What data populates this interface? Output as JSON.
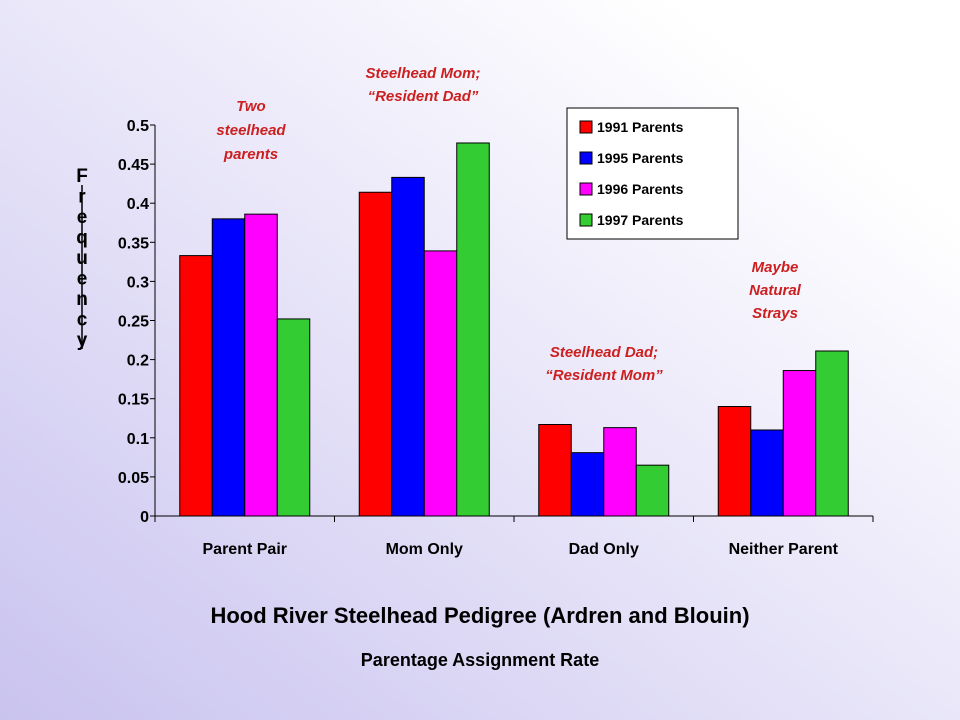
{
  "chart_data": {
    "type": "bar",
    "title": "Hood River Steelhead Pedigree (Ardren and Blouin)",
    "subtitle": "Parentage Assignment Rate",
    "ylabel": "Frequency",
    "xlabel": "",
    "ylim": [
      0,
      0.5
    ],
    "yticks": [
      "0",
      "0.05",
      "0.1",
      "0.15",
      "0.2",
      "0.25",
      "0.3",
      "0.35",
      "0.4",
      "0.45",
      "0.5"
    ],
    "categories": [
      "Parent Pair",
      "Mom Only",
      "Dad Only",
      "Neither Parent"
    ],
    "series": [
      {
        "name": "1991 Parents",
        "color": "#ff0000",
        "values": [
          0.333,
          0.414,
          0.117,
          0.14
        ]
      },
      {
        "name": "1995 Parents",
        "color": "#0000ff",
        "values": [
          0.38,
          0.433,
          0.081,
          0.11
        ]
      },
      {
        "name": "1996 Parents",
        "color": "#ff00ff",
        "values": [
          0.386,
          0.339,
          0.113,
          0.186
        ]
      },
      {
        "name": "1997 Parents",
        "color": "#33cc33",
        "values": [
          0.252,
          0.477,
          0.065,
          0.211
        ]
      }
    ],
    "legend_position": "top-right",
    "grid": false,
    "annotations": [
      {
        "lines": [
          "Two",
          "steelhead",
          "parents"
        ]
      },
      {
        "lines": [
          "Steelhead Mom;",
          "“Resident Dad”"
        ]
      },
      {
        "lines": [
          "Steelhead Dad;",
          "“Resident Mom”"
        ]
      },
      {
        "lines": [
          "Maybe",
          "Natural",
          "Strays"
        ]
      }
    ]
  }
}
